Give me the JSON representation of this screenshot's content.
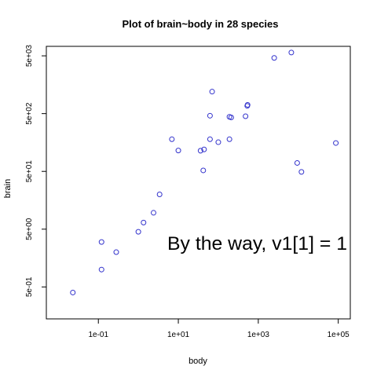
{
  "chart_data": {
    "type": "scatter",
    "title": "Plot of brain~body in 28 species",
    "xlabel": "body",
    "ylabel": "brain",
    "x_scale": "log",
    "y_scale": "log",
    "xlim": [
      0.005,
      200000
    ],
    "ylim": [
      0.14,
      7300
    ],
    "x_ticks": [
      {
        "value": 0.1,
        "label": "1e-01"
      },
      {
        "value": 10,
        "label": "1e+01"
      },
      {
        "value": 1000,
        "label": "1e+03"
      },
      {
        "value": 100000,
        "label": "1e+05"
      }
    ],
    "y_ticks": [
      {
        "value": 0.5,
        "label": "5e-01"
      },
      {
        "value": 5,
        "label": "5e+00"
      },
      {
        "value": 50,
        "label": "5e+01"
      },
      {
        "value": 500,
        "label": "5e+02"
      },
      {
        "value": 5000,
        "label": "5e+03"
      }
    ],
    "grid": false,
    "legend": "none",
    "point_color": "#3333cc",
    "annotation": "By the way, v1[1] =  1",
    "points": [
      {
        "x": 0.023,
        "y": 0.4
      },
      {
        "x": 0.12,
        "y": 1.0
      },
      {
        "x": 0.12,
        "y": 3.0
      },
      {
        "x": 0.28,
        "y": 2.0
      },
      {
        "x": 1.0,
        "y": 4.5
      },
      {
        "x": 1.35,
        "y": 6.5
      },
      {
        "x": 2.4,
        "y": 9.6
      },
      {
        "x": 3.4,
        "y": 20
      },
      {
        "x": 6.9,
        "y": 180
      },
      {
        "x": 10.0,
        "y": 115
      },
      {
        "x": 36,
        "y": 114
      },
      {
        "x": 44,
        "y": 120
      },
      {
        "x": 42,
        "y": 52
      },
      {
        "x": 62,
        "y": 460
      },
      {
        "x": 62,
        "y": 180
      },
      {
        "x": 70,
        "y": 1200
      },
      {
        "x": 100,
        "y": 160
      },
      {
        "x": 190,
        "y": 180
      },
      {
        "x": 190,
        "y": 440
      },
      {
        "x": 210,
        "y": 430
      },
      {
        "x": 480,
        "y": 450
      },
      {
        "x": 530,
        "y": 680
      },
      {
        "x": 540,
        "y": 710
      },
      {
        "x": 2500,
        "y": 4600
      },
      {
        "x": 6700,
        "y": 5700
      },
      {
        "x": 9400,
        "y": 70
      },
      {
        "x": 12000,
        "y": 49
      },
      {
        "x": 87000,
        "y": 155
      }
    ]
  }
}
